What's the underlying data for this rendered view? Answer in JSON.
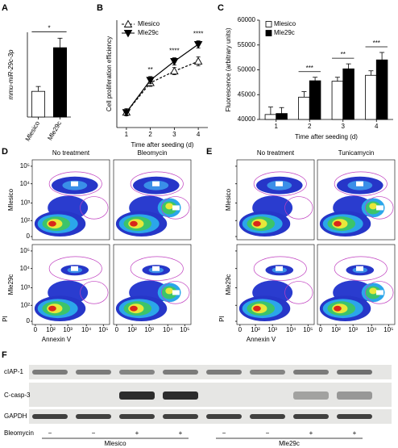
{
  "panels": [
    "A",
    "B",
    "C",
    "D",
    "E",
    "F"
  ],
  "chart_data": [
    {
      "type": "bar",
      "ylabel": "mmu-miR-29c-3p",
      "categories": [
        "Mlesico",
        "Mle29c"
      ],
      "values": [
        1,
        2.7
      ],
      "errors": [
        0.19,
        0.37
      ],
      "colors": [
        "#ffffff",
        "#000000"
      ],
      "ylim": [
        0,
        3.3
      ],
      "significance": "*"
    },
    {
      "type": "line",
      "xlabel": "Time after seeding (d)",
      "ylabel": "Cell proliferation efficiency",
      "x": [
        1,
        2,
        3,
        4
      ],
      "xlim": [
        0.6,
        4.4
      ],
      "xticks": [
        1,
        2,
        3,
        4
      ],
      "ylim": [
        0,
        120
      ],
      "series": [
        {
          "name": "Mlesico",
          "color": "#000000",
          "marker": "open-triangle-up",
          "linestyle": "dashed",
          "values": [
            17,
            50,
            63,
            74
          ],
          "errors": [
            4,
            4,
            4,
            5
          ]
        },
        {
          "name": "Mle29c",
          "color": "#000000",
          "marker": "filled-triangle-down",
          "linestyle": "solid",
          "values": [
            17,
            53,
            74,
            93
          ],
          "errors": [
            3,
            4,
            4,
            4
          ]
        }
      ],
      "significance": [
        null,
        "**",
        "****",
        "****"
      ],
      "legend": "upper left"
    },
    {
      "type": "bar",
      "xlabel": "Time after seeding (d)",
      "ylabel": "Fluorescence (arbitrary units)",
      "categories": [
        "1",
        "2",
        "3",
        "4"
      ],
      "ylim": [
        40000,
        60000
      ],
      "yticks": [
        40000,
        45000,
        50000,
        55000,
        60000
      ],
      "series": [
        {
          "name": "Mlesico",
          "color": "#ffffff",
          "values": [
            41000,
            44500,
            47700,
            48900
          ],
          "errors": [
            1500,
            1100,
            800,
            900
          ]
        },
        {
          "name": "Mle29c",
          "color": "#000000",
          "values": [
            41200,
            47800,
            50200,
            52000
          ],
          "errors": [
            1200,
            700,
            1000,
            1500
          ]
        }
      ],
      "significance": [
        null,
        "***",
        "**",
        "***"
      ],
      "legend": "upper left"
    }
  ],
  "flow_panels": [
    {
      "columns": [
        "No treatment",
        "Bleomycin"
      ],
      "rows": [
        "Mlesico",
        "Mle29c"
      ],
      "y_label": "PI",
      "x_label": "Annexin V",
      "ticks": [
        "0",
        "10²",
        "10³",
        "10⁴",
        "10⁵"
      ]
    },
    {
      "columns": [
        "No treatment",
        "Tunicamycin"
      ],
      "rows": [
        "Mlesico",
        "Mle29c"
      ],
      "y_label": "PI",
      "x_label": "Annexin V",
      "ticks": [
        "0",
        "10²",
        "10³",
        "10⁴",
        "10⁵"
      ]
    }
  ],
  "blot": {
    "bands": [
      "cIAP-1",
      "C-casp-3",
      "GAPDH"
    ],
    "treatment": "Bleomycin",
    "treatment_signs": [
      "−",
      "−",
      "+",
      "+",
      "−",
      "−",
      "+",
      "+"
    ],
    "groups": [
      "Mlesico",
      "Mle29c"
    ]
  }
}
